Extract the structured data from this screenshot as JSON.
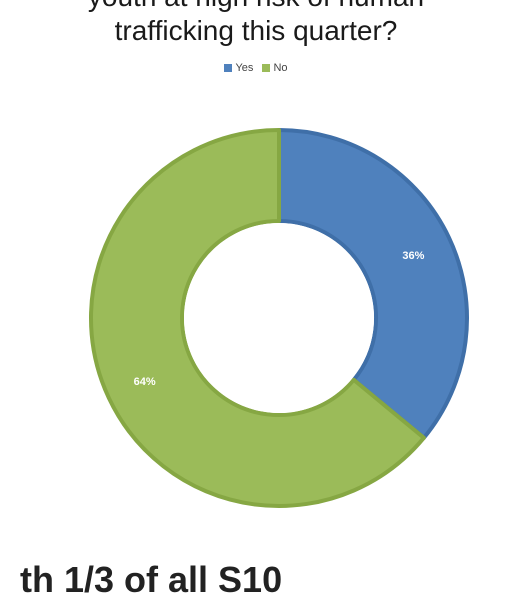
{
  "chart_data": {
    "type": "pie",
    "style": "donut",
    "title_lines": [
      "youth at high risk of human",
      "trafficking this quarter?"
    ],
    "categories": [
      "Yes",
      "No"
    ],
    "values": [
      36,
      64
    ],
    "data_labels": [
      "36%",
      "64%"
    ],
    "colors": [
      "#4f81bd",
      "#9bbb59"
    ],
    "border_colors": [
      "#3f6fa8",
      "#86a743"
    ],
    "legend": {
      "position": "top",
      "entries": [
        "Yes",
        "No"
      ]
    }
  },
  "bottom_partial_text": "th         1/3 of all S10"
}
